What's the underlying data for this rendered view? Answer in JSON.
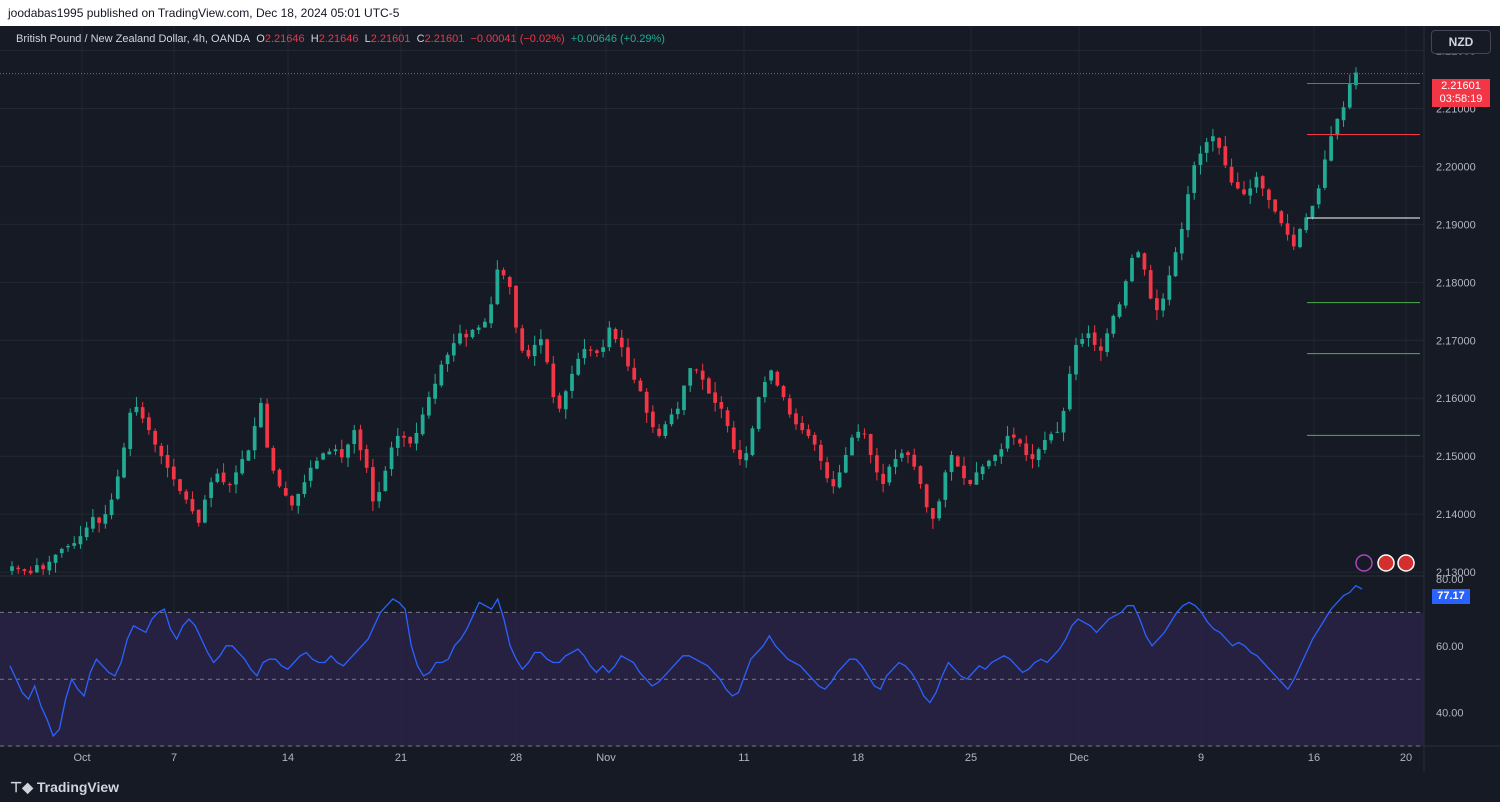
{
  "header": {
    "published_text": "joodabas1995 published on TradingView.com, Dec 18, 2024 05:01 UTC-5"
  },
  "legend": {
    "symbol": "British Pound / New Zealand Dollar, 4h, OANDA",
    "open_label": "O",
    "open": "2.21646",
    "high_label": "H",
    "high": "2.21646",
    "low_label": "L",
    "low": "2.21601",
    "close_label": "C",
    "close": "2.21601",
    "change": "−0.00041 (−0.02%)",
    "change2": "+0.00646 (+0.29%)"
  },
  "currency_button": "NZD",
  "last_price": {
    "price": "2.21601",
    "countdown": "03:58:19"
  },
  "rsi_value": "77.17",
  "footer": {
    "brand": "TradingView"
  },
  "colors": {
    "background": "#161a25",
    "up": "#22ab94",
    "down": "#f23645",
    "rsi_line": "#2962ff",
    "rsi_band": "#2a2346"
  },
  "chart_data": [
    {
      "type": "candlestick",
      "description_free": true,
      "y_ticks": [
        "2.22000",
        "2.21000",
        "2.20000",
        "2.19000",
        "2.18000",
        "2.17000",
        "2.16000",
        "2.15000",
        "2.14000",
        "2.13000"
      ],
      "ylim": [
        2.1295,
        2.2225
      ],
      "x_ticks": [
        "Oct",
        "7",
        "14",
        "21",
        "28",
        "Nov",
        "11",
        "18",
        "25",
        "Dec",
        "9",
        "16",
        "20"
      ],
      "path_closes": [
        2.131,
        2.1305,
        2.1302,
        2.1298,
        2.1312,
        2.1305,
        2.1318,
        2.133,
        2.134,
        2.1345,
        2.135,
        2.1362,
        2.1377,
        2.1395,
        2.1385,
        2.14,
        2.1425,
        2.1465,
        2.1515,
        2.1575,
        2.1585,
        2.1565,
        2.1545,
        2.152,
        2.15,
        2.148,
        2.146,
        2.144,
        2.1425,
        2.1405,
        2.1385,
        2.1425,
        2.1455,
        2.147,
        2.1455,
        2.145,
        2.1472,
        2.1495,
        2.151,
        2.1552,
        2.1592,
        2.1515,
        2.1475,
        2.1448,
        2.1432,
        2.1415,
        2.1435,
        2.1455,
        2.148,
        2.1492,
        2.1505,
        2.1508,
        2.1512,
        2.1498,
        2.152,
        2.1545,
        2.151,
        2.148,
        2.1422,
        2.1438,
        2.1475,
        2.1515,
        2.1535,
        2.1532,
        2.1522,
        2.154,
        2.1572,
        2.1602,
        2.1625,
        2.1658,
        2.1675,
        2.1695,
        2.1712,
        2.1705,
        2.1718,
        2.1722,
        2.1732,
        2.1762,
        2.1822,
        2.1812,
        2.1792,
        2.1722,
        2.1682,
        2.1672,
        2.1692,
        2.1702,
        2.1662,
        2.1602,
        2.1582,
        2.1612,
        2.1642,
        2.1668,
        2.1685,
        2.1682,
        2.1678,
        2.1688,
        2.1722,
        2.1702,
        2.1688,
        2.1655,
        2.1632,
        2.1612,
        2.1575,
        2.155,
        2.1535,
        2.1555,
        2.1572,
        2.1582,
        2.1622,
        2.1652,
        2.1648,
        2.1632,
        2.1608,
        2.1592,
        2.1582,
        2.1552,
        2.1512,
        2.1495,
        2.1505,
        2.1548,
        2.1602,
        2.1628,
        2.1648,
        2.1622,
        2.1602,
        2.1572,
        2.1555,
        2.1545,
        2.1535,
        2.152,
        2.1492,
        2.1462,
        2.1448,
        2.1472,
        2.1502,
        2.1532,
        2.1542,
        2.1538,
        2.1502,
        2.1472,
        2.1452,
        2.1482,
        2.1495,
        2.1505,
        2.1502,
        2.1482,
        2.1452,
        2.1412,
        2.1392,
        2.1422,
        2.1472,
        2.1502,
        2.1482,
        2.1462,
        2.1452,
        2.1472,
        2.1482,
        2.1492,
        2.1502,
        2.1512,
        2.1535,
        2.1532,
        2.1522,
        2.1502,
        2.1495,
        2.1512,
        2.1528,
        2.1538,
        2.1542,
        2.1578,
        2.1642,
        2.1692,
        2.1702,
        2.1712,
        2.1692,
        2.1682,
        2.1712,
        2.1742,
        2.1762,
        2.1802,
        2.1842,
        2.1852,
        2.1822,
        2.1772,
        2.1752,
        2.1772,
        2.1812,
        2.1852,
        2.1892,
        2.1952,
        2.2002,
        2.2022,
        2.2042,
        2.2052,
        2.2032,
        2.2002,
        2.1972,
        2.1962,
        2.1952,
        2.1962,
        2.1982,
        2.1962,
        2.1942,
        2.1922,
        2.1902,
        2.1882,
        2.1862,
        2.1892,
        2.1912,
        2.1932,
        2.1962,
        2.2012,
        2.2052,
        2.2082,
        2.2102,
        2.2142,
        2.2162
      ]
    },
    {
      "type": "line",
      "name": "RSI",
      "y_ticks": [
        "80.00",
        "60.00",
        "40.00"
      ],
      "ylim": [
        30,
        80
      ],
      "bands": [
        70,
        50,
        30
      ],
      "values": [
        54,
        50,
        46,
        44,
        48,
        42,
        38,
        33,
        35,
        44,
        50,
        47,
        45,
        52,
        56,
        54,
        52,
        51,
        55,
        62,
        66,
        65,
        64,
        68,
        70,
        71,
        65,
        62,
        66,
        68,
        66,
        62,
        58,
        55,
        57,
        60,
        60,
        58,
        56,
        53,
        51,
        55,
        56,
        56,
        54,
        53,
        55,
        57,
        58,
        56,
        55,
        55,
        57,
        55,
        54,
        56,
        58,
        60,
        62,
        66,
        70,
        72,
        74,
        73,
        71,
        60,
        54,
        51,
        52,
        55,
        55,
        56,
        60,
        62,
        65,
        69,
        73,
        72,
        71,
        74,
        68,
        60,
        56,
        53,
        55,
        58,
        58,
        56,
        55,
        55,
        57,
        58,
        59,
        57,
        54,
        52,
        54,
        52,
        54,
        57,
        56,
        55,
        52,
        50,
        48,
        49,
        51,
        53,
        55,
        57,
        57,
        56,
        55,
        54,
        52,
        50,
        47,
        45,
        46,
        51,
        56,
        58,
        60,
        63,
        60,
        58,
        56,
        55,
        54,
        52,
        50,
        48,
        47,
        49,
        52,
        54,
        56,
        56,
        54,
        51,
        48,
        47,
        51,
        53,
        55,
        54,
        52,
        49,
        45,
        43,
        46,
        51,
        55,
        53,
        51,
        50,
        52,
        54,
        53,
        55,
        56,
        57,
        56,
        54,
        52,
        53,
        55,
        56,
        55,
        57,
        59,
        62,
        66,
        68,
        67,
        66,
        64,
        66,
        68,
        69,
        70,
        72,
        72,
        68,
        63,
        60,
        62,
        64,
        67,
        70,
        72,
        73,
        72,
        70,
        67,
        65,
        64,
        62,
        60,
        61,
        60,
        58,
        57,
        55,
        53,
        51,
        49,
        47,
        50,
        54,
        58,
        62,
        65,
        68,
        71,
        73,
        75,
        76,
        78,
        77
      ]
    }
  ]
}
